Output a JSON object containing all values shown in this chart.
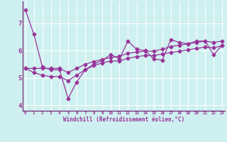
{
  "x": [
    0,
    1,
    2,
    3,
    4,
    5,
    6,
    7,
    8,
    9,
    10,
    11,
    12,
    13,
    14,
    15,
    16,
    17,
    18,
    19,
    20,
    21,
    22,
    23
  ],
  "line_main": [
    7.5,
    6.6,
    5.4,
    5.3,
    5.3,
    4.25,
    4.85,
    5.3,
    5.5,
    5.65,
    5.85,
    5.7,
    6.35,
    6.05,
    6.0,
    5.7,
    5.65,
    6.4,
    6.3,
    6.25,
    6.35,
    6.35,
    5.85,
    6.2
  ],
  "line_upper": [
    5.35,
    5.35,
    5.35,
    5.35,
    5.35,
    5.2,
    5.35,
    5.5,
    5.6,
    5.68,
    5.75,
    5.8,
    5.9,
    5.95,
    5.98,
    5.98,
    6.05,
    6.15,
    6.2,
    6.25,
    6.3,
    6.35,
    6.3,
    6.35
  ],
  "line_lower": [
    5.35,
    5.2,
    5.1,
    5.05,
    5.05,
    4.9,
    5.1,
    5.3,
    5.45,
    5.55,
    5.62,
    5.62,
    5.72,
    5.78,
    5.82,
    5.82,
    5.88,
    5.93,
    5.98,
    6.03,
    6.08,
    6.13,
    6.1,
    6.18
  ],
  "color": "#993399",
  "bg_color": "#cff0f0",
  "xlabel": "Windchill (Refroidissement éolien,°C)",
  "yticks": [
    4,
    5,
    6,
    7
  ],
  "xticks": [
    0,
    1,
    2,
    3,
    4,
    5,
    6,
    7,
    8,
    9,
    10,
    11,
    12,
    13,
    14,
    15,
    16,
    17,
    18,
    19,
    20,
    21,
    22,
    23
  ],
  "ylim": [
    3.8,
    7.8
  ],
  "xlim": [
    -0.3,
    23.3
  ],
  "grid_color": "#aadddd",
  "spine_color": "#7a3a7a"
}
